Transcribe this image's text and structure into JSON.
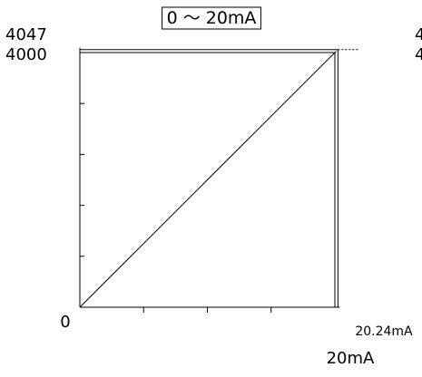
{
  "chart_data": {
    "type": "line",
    "title": "0 ～ 20mA",
    "xlabel": "",
    "ylabel": "",
    "xlim": [
      0,
      20.24
    ],
    "ylim": [
      0,
      4047
    ],
    "series": [
      {
        "x": [
          0,
          20
        ],
        "y": [
          0,
          4000
        ],
        "style": "solid"
      },
      {
        "x": [
          20,
          20.24
        ],
        "y": [
          4000,
          4047
        ],
        "style": "dashed"
      }
    ],
    "y_tick_labels": [
      {
        "value": 0,
        "label": "0"
      },
      {
        "value": 4000,
        "label": "4000"
      },
      {
        "value": 4047,
        "label": "4047"
      }
    ],
    "x_tick_labels": [
      {
        "value": 20,
        "label": "20mA"
      },
      {
        "value": 20.24,
        "label": "20.24mA"
      }
    ],
    "y_minor_ticks": [
      800,
      1600,
      2400,
      3200
    ],
    "x_minor_ticks": [
      5,
      10,
      15
    ],
    "reference_lines": [
      {
        "axis": "x",
        "value": 20
      },
      {
        "axis": "x",
        "value": 20.24
      },
      {
        "axis": "y",
        "value": 4000
      },
      {
        "axis": "y",
        "value": 4047
      }
    ],
    "grid": false,
    "truncated_edge_text": [
      "4",
      "4"
    ]
  }
}
